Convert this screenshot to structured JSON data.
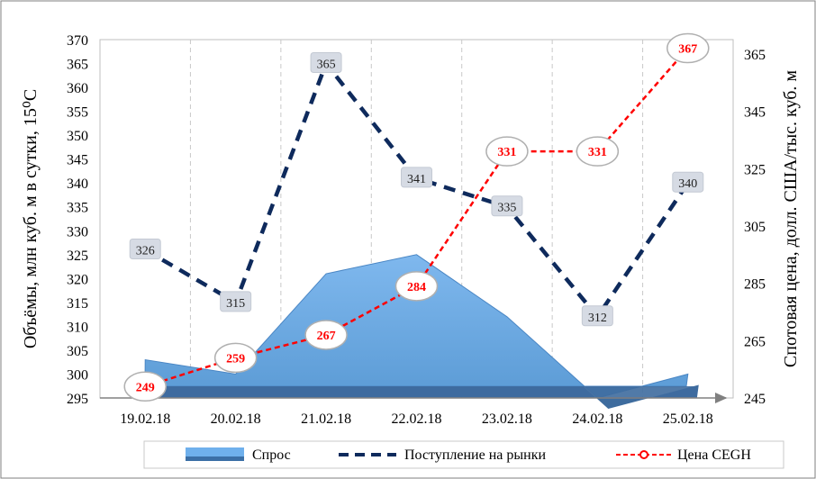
{
  "chart_data": {
    "type": "area",
    "categories": [
      "19.02.18",
      "20.02.18",
      "21.02.18",
      "22.02.18",
      "23.02.18",
      "24.02.18",
      "25.02.18"
    ],
    "y_left": {
      "label": "Объёмы, млн куб. м в сутки, 15⁰С",
      "ylim": [
        295,
        370
      ],
      "ticks": [
        295,
        300,
        305,
        310,
        315,
        320,
        325,
        330,
        335,
        340,
        345,
        350,
        355,
        360,
        365,
        370
      ]
    },
    "y_right": {
      "label": "Спотовая цена, долл. США/тыс. куб. м",
      "ylim": [
        245,
        370
      ],
      "ticks": [
        245,
        265,
        285,
        305,
        325,
        345,
        365
      ]
    },
    "series": [
      {
        "name": "Спрос",
        "type": "area",
        "axis": "left",
        "color": "#5b9bd5",
        "values": [
          303,
          300,
          321,
          325,
          312,
          295,
          300
        ]
      },
      {
        "name": "Поступление на рынки",
        "type": "line",
        "axis": "left",
        "color": "#0e2a5c",
        "values": [
          326,
          315,
          365,
          341,
          335,
          312,
          340
        ]
      },
      {
        "name": "Цена CEGH",
        "type": "line",
        "axis": "right",
        "color": "#ff0000",
        "values": [
          249,
          259,
          267,
          284,
          331,
          331,
          367
        ]
      }
    ],
    "grid": "vertical dashed",
    "legend": "bottom"
  }
}
